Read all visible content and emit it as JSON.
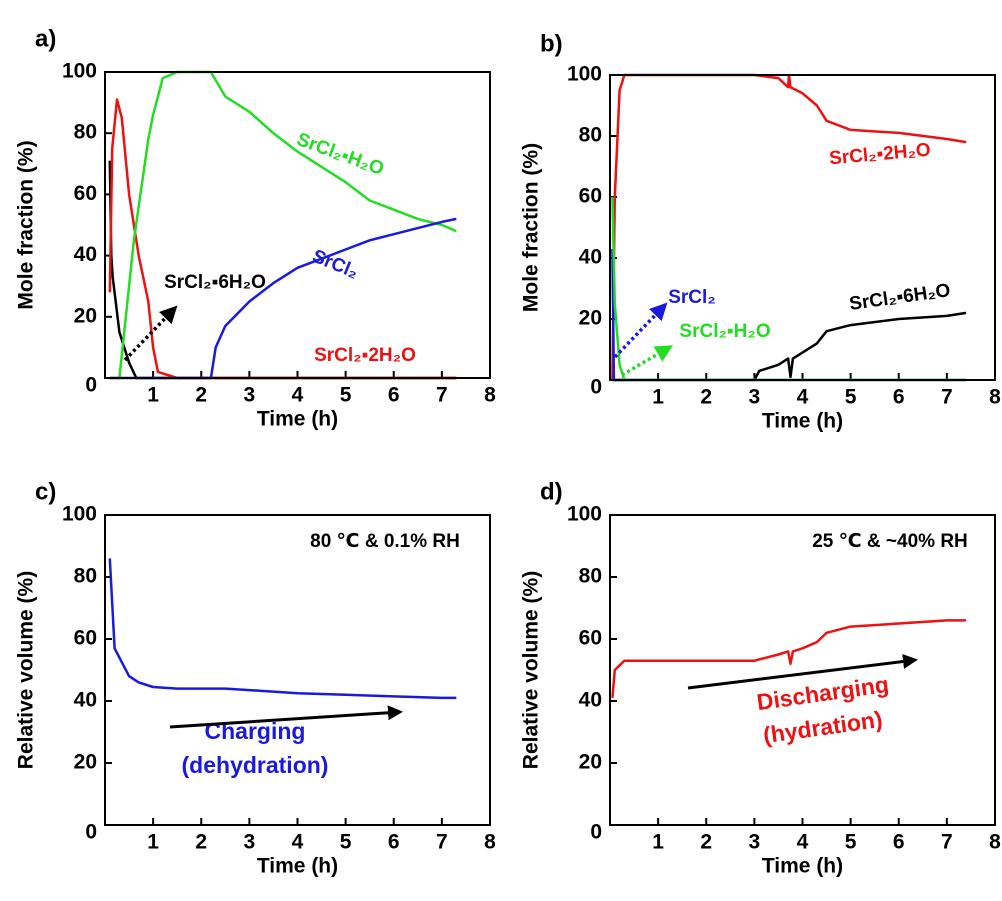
{
  "chart_data": [
    {
      "type": "line",
      "panel_label": "a)",
      "xlabel": "Time (h)",
      "ylabel": "Mole fraction (%)",
      "xlim": [
        0,
        8
      ],
      "ylim": [
        0,
        100
      ],
      "xticks": [
        1,
        2,
        3,
        4,
        5,
        6,
        7,
        8
      ],
      "yticks": [
        0,
        20,
        40,
        60,
        80,
        100
      ],
      "series": [
        {
          "name": "SrCl₂▪6H₂O",
          "color": "#000000",
          "x": [
            0.1,
            0.13,
            0.16,
            0.3,
            0.5,
            0.65,
            1,
            2,
            3,
            4,
            5,
            6,
            7,
            7.3
          ],
          "values": [
            71,
            40,
            33,
            15,
            5,
            0,
            0,
            0,
            0,
            0,
            0,
            0,
            0,
            0
          ]
        },
        {
          "name": "SrCl₂▪2H₂O",
          "color": "#ee1111",
          "x": [
            0.1,
            0.15,
            0.25,
            0.35,
            0.5,
            0.7,
            0.9,
            1.0,
            1.1,
            1.5,
            2,
            3,
            4,
            5,
            6,
            7,
            7.3
          ],
          "values": [
            28,
            75,
            91,
            85,
            60,
            40,
            25,
            10,
            2,
            0,
            0,
            0,
            0,
            0,
            0,
            0,
            0
          ]
        },
        {
          "name": "SrCl₂▪H₂O",
          "color": "#22dd22",
          "x": [
            0.1,
            0.3,
            0.6,
            0.9,
            1.0,
            1.2,
            1.5,
            2.2,
            2.5,
            3,
            3.5,
            4,
            4.5,
            5,
            5.5,
            6,
            6.5,
            7,
            7.3
          ],
          "values": [
            0,
            0,
            45,
            78,
            86,
            98,
            100,
            100,
            92,
            87,
            80,
            74,
            69,
            64,
            58,
            55,
            52,
            50,
            48
          ]
        },
        {
          "name": "SrCl₂",
          "color": "#1a1adf",
          "x": [
            0.1,
            2.2,
            2.3,
            2.5,
            3,
            3.5,
            4,
            4.5,
            5,
            5.5,
            6,
            6.5,
            7,
            7.3
          ],
          "values": [
            0,
            0,
            10,
            17,
            25,
            31,
            36,
            39,
            42,
            45,
            47,
            49,
            51,
            52
          ]
        }
      ]
    },
    {
      "type": "line",
      "panel_label": "b)",
      "xlabel": "Time (h)",
      "ylabel": "Mole fraction (%)",
      "xlim": [
        0,
        8
      ],
      "ylim": [
        0,
        100
      ],
      "xticks": [
        1,
        2,
        3,
        4,
        5,
        6,
        7,
        8
      ],
      "yticks": [
        0,
        20,
        40,
        60,
        80,
        100
      ],
      "series": [
        {
          "name": "SrCl₂▪2H₂O",
          "color": "#ee1111",
          "x": [
            0.05,
            0.1,
            0.2,
            0.3,
            3,
            3.5,
            3.7,
            3.72,
            3.75,
            4,
            4.3,
            4.5,
            5,
            6,
            7,
            7.4
          ],
          "values": [
            0,
            60,
            95,
            100,
            100,
            99,
            96,
            100,
            96,
            94,
            90,
            85,
            82,
            81,
            79,
            78
          ]
        },
        {
          "name": "SrCl₂▪6H₂O",
          "color": "#000000",
          "x": [
            0.05,
            0.1,
            3,
            3.1,
            3.5,
            3.7,
            3.75,
            3.8,
            4,
            4.3,
            4.5,
            5,
            6,
            7,
            7.4
          ],
          "values": [
            0,
            0,
            0,
            3,
            5,
            7,
            1,
            7,
            9,
            12,
            16,
            18,
            20,
            21,
            22
          ]
        },
        {
          "name": "SrCl₂",
          "color": "#1a1adf",
          "x": [
            0.05,
            0.08,
            0.15,
            0.3,
            7.4
          ],
          "values": [
            43,
            0,
            0,
            0,
            0
          ]
        },
        {
          "name": "SrCl₂▪H₂O",
          "color": "#22dd22",
          "x": [
            0.05,
            0.1,
            0.2,
            0.3,
            7.4
          ],
          "values": [
            60,
            25,
            5,
            0,
            0
          ]
        }
      ]
    },
    {
      "type": "line",
      "panel_label": "c)",
      "xlabel": "Time (h)",
      "ylabel": "Relative volume (%)",
      "xlim": [
        0,
        8
      ],
      "ylim": [
        0,
        100
      ],
      "xticks": [
        1,
        2,
        3,
        4,
        5,
        6,
        7,
        8
      ],
      "yticks": [
        0,
        20,
        40,
        60,
        80,
        100
      ],
      "annotations": [
        {
          "text": "80 ℃ & 0.1% RH",
          "color": "#000000"
        },
        {
          "text": "Charging",
          "color": "#1a1adf"
        },
        {
          "text": "(dehydration)",
          "color": "#1a1adf"
        }
      ],
      "series": [
        {
          "color": "#1a1adf",
          "x": [
            0.1,
            0.2,
            0.3,
            0.5,
            0.7,
            1,
            1.5,
            2,
            2.5,
            3,
            4,
            5,
            6,
            7,
            7.3
          ],
          "values": [
            86,
            57,
            54,
            48,
            46,
            44.5,
            44,
            44,
            44,
            43.5,
            42.5,
            42,
            41.5,
            41,
            41
          ]
        }
      ]
    },
    {
      "type": "line",
      "panel_label": "d)",
      "xlabel": "Time (h)",
      "ylabel": "Relative volume (%)",
      "xlim": [
        0,
        8
      ],
      "ylim": [
        0,
        100
      ],
      "xticks": [
        1,
        2,
        3,
        4,
        5,
        6,
        7,
        8
      ],
      "yticks": [
        0,
        20,
        40,
        60,
        80,
        100
      ],
      "annotations": [
        {
          "text": "25 ℃ & ~40% RH",
          "color": "#000000"
        },
        {
          "text": "Discharging",
          "color": "#ee1111"
        },
        {
          "text": "(hydration)",
          "color": "#ee1111"
        }
      ],
      "series": [
        {
          "color": "#ee1111",
          "x": [
            0.05,
            0.1,
            0.3,
            0.5,
            1,
            2,
            3,
            3.5,
            3.7,
            3.75,
            3.8,
            4,
            4.3,
            4.5,
            5,
            6,
            7,
            7.4
          ],
          "values": [
            41,
            50,
            53,
            53,
            53,
            53,
            53,
            55,
            56,
            52,
            56,
            57,
            59,
            62,
            64,
            65,
            66,
            66
          ]
        }
      ]
    }
  ]
}
